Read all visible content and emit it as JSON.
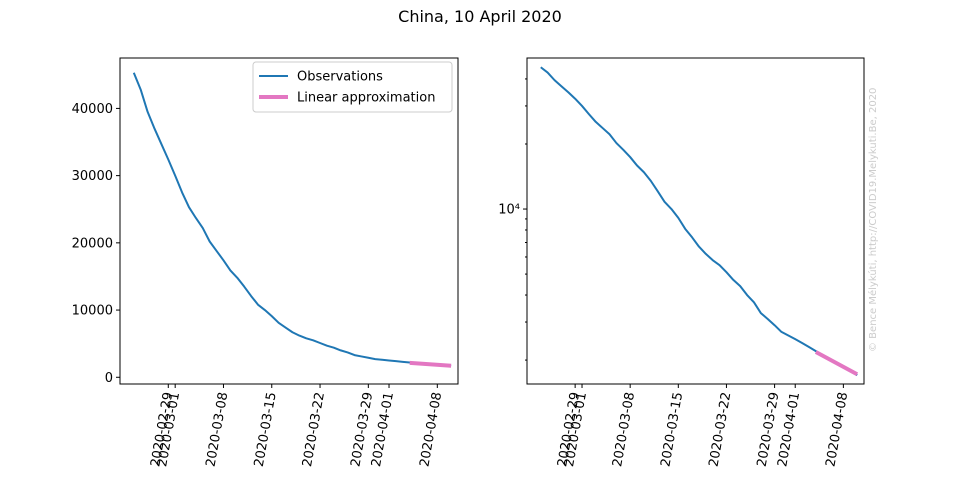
{
  "figure": {
    "title": "China, 10 April 2020",
    "watermark": "© Bence Mélykúti, http://COVID19.Melykuti.Be, 2020"
  },
  "colors": {
    "observations": "#1f77b4",
    "linear_approximation": "#e377c2",
    "axes": "#000000"
  },
  "chart_data": [
    {
      "type": "line",
      "yscale": "linear",
      "xlim": [
        "2020-02-22",
        "2020-04-11"
      ],
      "ylim": [
        -1000,
        47500
      ],
      "x_ticks": [
        "2020-02-29",
        "2020-03-01",
        "2020-03-08",
        "2020-03-15",
        "2020-03-22",
        "2020-03-29",
        "2020-04-01",
        "2020-04-08"
      ],
      "y_ticks": [
        0,
        10000,
        20000,
        30000,
        40000
      ],
      "y_tick_labels": [
        "0",
        "10000",
        "20000",
        "30000",
        "40000"
      ],
      "legend": {
        "placement": "upper right",
        "entries": [
          "Observations",
          "Linear approximation"
        ]
      },
      "series": [
        {
          "name": "Observations",
          "x": [
            "2020-02-24",
            "2020-02-25",
            "2020-02-26",
            "2020-02-27",
            "2020-02-28",
            "2020-02-29",
            "2020-03-01",
            "2020-03-02",
            "2020-03-03",
            "2020-03-04",
            "2020-03-05",
            "2020-03-06",
            "2020-03-07",
            "2020-03-08",
            "2020-03-09",
            "2020-03-10",
            "2020-03-11",
            "2020-03-12",
            "2020-03-13",
            "2020-03-14",
            "2020-03-15",
            "2020-03-16",
            "2020-03-17",
            "2020-03-18",
            "2020-03-19",
            "2020-03-20",
            "2020-03-21",
            "2020-03-22",
            "2020-03-23",
            "2020-03-24",
            "2020-03-25",
            "2020-03-26",
            "2020-03-27",
            "2020-03-28",
            "2020-03-29",
            "2020-03-30",
            "2020-03-31",
            "2020-04-01",
            "2020-04-02",
            "2020-04-03",
            "2020-04-04",
            "2020-04-05",
            "2020-04-06",
            "2020-04-07",
            "2020-04-08",
            "2020-04-09",
            "2020-04-10"
          ],
          "y": [
            45300,
            42800,
            39500,
            37000,
            34700,
            32400,
            30000,
            27500,
            25300,
            23700,
            22200,
            20200,
            18800,
            17400,
            15900,
            14800,
            13500,
            12100,
            10800,
            10000,
            9100,
            8100,
            7400,
            6700,
            6200,
            5800,
            5500,
            5100,
            4700,
            4400,
            4000,
            3700,
            3300,
            3100,
            2900,
            2700,
            2600,
            2500,
            2400,
            2300,
            2200,
            2100,
            2000,
            1950,
            1850,
            1800,
            1700
          ]
        },
        {
          "name": "Linear approximation",
          "x": [
            "2020-04-04",
            "2020-04-10"
          ],
          "y": [
            2150,
            1720
          ]
        }
      ]
    },
    {
      "type": "line",
      "yscale": "log",
      "xlim": [
        "2020-02-22",
        "2020-04-11"
      ],
      "ylim": [
        1550,
        50000
      ],
      "x_ticks": [
        "2020-02-29",
        "2020-03-01",
        "2020-03-08",
        "2020-03-15",
        "2020-03-22",
        "2020-03-29",
        "2020-04-01",
        "2020-04-08"
      ],
      "y_ticks": [
        10000
      ],
      "y_tick_labels": [
        "10⁴"
      ],
      "series": [
        {
          "name": "Observations",
          "x": [
            "2020-02-24",
            "2020-02-25",
            "2020-02-26",
            "2020-02-27",
            "2020-02-28",
            "2020-02-29",
            "2020-03-01",
            "2020-03-02",
            "2020-03-03",
            "2020-03-04",
            "2020-03-05",
            "2020-03-06",
            "2020-03-07",
            "2020-03-08",
            "2020-03-09",
            "2020-03-10",
            "2020-03-11",
            "2020-03-12",
            "2020-03-13",
            "2020-03-14",
            "2020-03-15",
            "2020-03-16",
            "2020-03-17",
            "2020-03-18",
            "2020-03-19",
            "2020-03-20",
            "2020-03-21",
            "2020-03-22",
            "2020-03-23",
            "2020-03-24",
            "2020-03-25",
            "2020-03-26",
            "2020-03-27",
            "2020-03-28",
            "2020-03-29",
            "2020-03-30",
            "2020-03-31",
            "2020-04-01",
            "2020-04-02",
            "2020-04-03",
            "2020-04-04",
            "2020-04-05",
            "2020-04-06",
            "2020-04-07",
            "2020-04-08",
            "2020-04-09",
            "2020-04-10"
          ],
          "y": [
            45300,
            42800,
            39500,
            37000,
            34700,
            32400,
            30000,
            27500,
            25300,
            23700,
            22200,
            20200,
            18800,
            17400,
            15900,
            14800,
            13500,
            12100,
            10800,
            10000,
            9100,
            8100,
            7400,
            6700,
            6200,
            5800,
            5500,
            5100,
            4700,
            4400,
            4000,
            3700,
            3300,
            3100,
            2900,
            2700,
            2600,
            2500,
            2400,
            2300,
            2200,
            2100,
            2000,
            1950,
            1850,
            1800,
            1700
          ]
        },
        {
          "name": "Linear approximation",
          "x": [
            "2020-04-04",
            "2020-04-10"
          ],
          "y": [
            2180,
            1720
          ]
        }
      ]
    }
  ]
}
